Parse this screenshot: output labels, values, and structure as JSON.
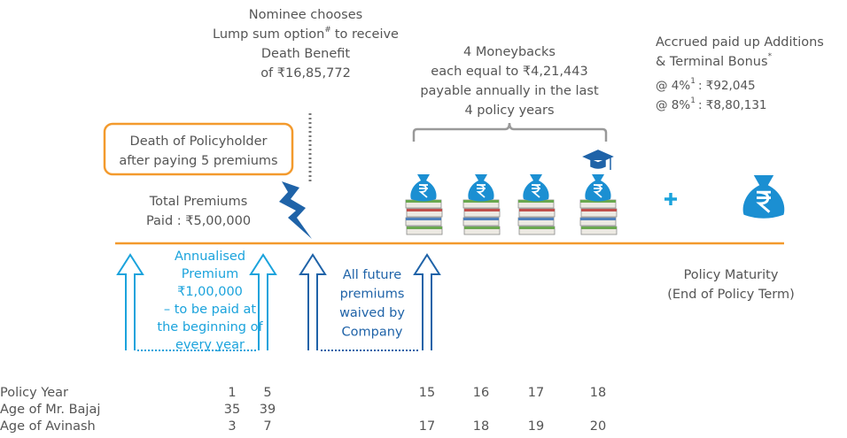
{
  "nominee": {
    "line1": "Nominee chooses",
    "line2": "Lump sum option",
    "line2_sup": "#",
    "line2_end": "to receive",
    "line3": "Death Benefit",
    "line4": "of ₹16,85,772"
  },
  "moneybacks": {
    "lines": [
      "4 Moneybacks",
      "each equal to ₹4,21,443",
      "payable annually in the last",
      "4 policy years"
    ]
  },
  "accrued": {
    "line1": "Accrued paid up Additions",
    "line2": "& Terminal Bonus",
    "line2_sup": "*",
    "rates": [
      {
        "rate": "@ 4%",
        "sup": "1",
        "amount": ": ₹92,045"
      },
      {
        "rate": "@ 8%",
        "sup": "1",
        "amount": ": ₹8,80,131"
      }
    ]
  },
  "death_box": {
    "lines": [
      "Death of Policyholder",
      "after paying 5 premiums"
    ]
  },
  "total_premiums": {
    "lines": [
      "Total Premiums",
      "Paid : ₹5,00,000"
    ]
  },
  "annualised": {
    "lines": [
      "Annualised",
      "Premium",
      "₹1,00,000",
      "– to be paid at",
      "the beginning of",
      "every year"
    ]
  },
  "waived": {
    "lines": [
      "All future",
      "premiums",
      "waived by",
      "Company"
    ]
  },
  "maturity": {
    "lines": [
      "Policy Maturity",
      "(End of Policy Term)"
    ]
  },
  "table": {
    "rows": [
      {
        "label": "Policy Year",
        "cells": [
          1,
          5,
          15,
          16,
          17,
          18
        ]
      },
      {
        "label": "Age of Mr. Bajaj",
        "cells": [
          35,
          39,
          null,
          null,
          null,
          null
        ]
      },
      {
        "label": "Age of Avinash",
        "cells": [
          3,
          7,
          17,
          18,
          19,
          20
        ]
      }
    ]
  }
}
